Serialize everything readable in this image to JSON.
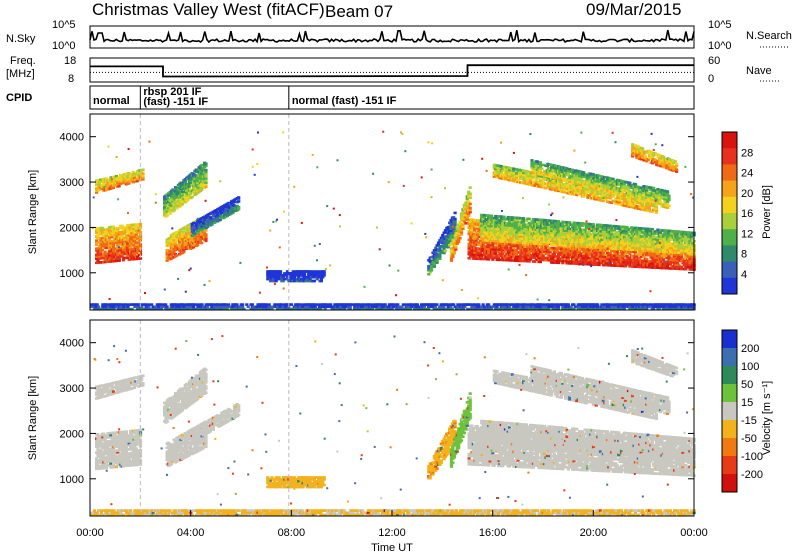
{
  "header": {
    "station": "Christmas Valley West (fitACF)",
    "beam": "Beam 07",
    "date": "09/Mar/2015"
  },
  "colors": {
    "power": [
      "#1f35d6",
      "#3a5fb8",
      "#2e8a6a",
      "#4fb04a",
      "#a9cf3a",
      "#f2d21e",
      "#f5a41a",
      "#f06a14",
      "#e8311c",
      "#d9140f"
    ],
    "velocity": [
      "#1a2fd0",
      "#3c6fb0",
      "#2f8a5a",
      "#6dc23b",
      "#c8c8c0",
      "#f2b21e",
      "#f07a10",
      "#e83a14",
      "#d0100c"
    ]
  },
  "top_panels": {
    "nsky": {
      "label": "N.Sky",
      "tick_top": "10^5",
      "tick_bottom": "10^0",
      "right_top": "10^5",
      "right_bottom": "10^0",
      "right_label": "N.Search"
    },
    "freq": {
      "label_line1": "Freq.",
      "label_line2": "[MHz]",
      "tick_top": "18",
      "tick_bottom": "8",
      "right_top": "60",
      "right_bottom": "0",
      "right_label": "Nave"
    },
    "cpid": {
      "label": "CPID",
      "segments": [
        {
          "text": "normal",
          "start_h": 0.0,
          "end_h": 2.0
        },
        {
          "text_line1": "rbsp 201 IF",
          "text_line2": "(fast) -151 IF",
          "start_h": 2.0,
          "end_h": 7.9
        },
        {
          "text": "normal (fast) -151 IF",
          "start_h": 7.9,
          "end_h": 24.0
        }
      ]
    }
  },
  "chart_data": [
    {
      "type": "heatmap",
      "name": "power",
      "ylabel": "Slant Range [km]",
      "xlabel": "",
      "xlim": [
        0,
        24
      ],
      "ylim": [
        180,
        4500
      ],
      "yticks": [
        1000,
        2000,
        3000,
        4000
      ],
      "colorbar": {
        "label": "Power [dB]",
        "ticks": [
          4,
          8,
          12,
          16,
          20,
          24,
          28
        ],
        "range": [
          0,
          30
        ]
      },
      "bands": [
        {
          "t0": 0.2,
          "t1": 2.0,
          "r_low0": 1200,
          "r_high0": 2000,
          "r_low1": 1300,
          "r_high1": 2100,
          "level": 26
        },
        {
          "t0": 0.2,
          "t1": 2.1,
          "r_low0": 2750,
          "r_high0": 3050,
          "r_low1": 3050,
          "r_high1": 3300,
          "level": 22
        },
        {
          "t0": 3.0,
          "t1": 4.6,
          "r_low0": 1250,
          "r_high0": 1800,
          "r_low1": 1700,
          "r_high1": 2300,
          "level": 24
        },
        {
          "t0": 2.9,
          "t1": 4.6,
          "r_low0": 2200,
          "r_high0": 2700,
          "r_low1": 2900,
          "r_high1": 3500,
          "level": 16
        },
        {
          "t0": 4.0,
          "t1": 5.9,
          "r_low0": 1800,
          "r_high0": 2100,
          "r_low1": 2400,
          "r_high1": 2700,
          "level": 8
        },
        {
          "t0": 7.0,
          "t1": 9.3,
          "r_low0": 800,
          "r_high0": 1050,
          "r_low1": 800,
          "r_high1": 1050,
          "level": 4
        },
        {
          "t0": 13.4,
          "t1": 14.5,
          "r_low0": 950,
          "r_high0": 1300,
          "r_low1": 1800,
          "r_high1": 2400,
          "level": 10
        },
        {
          "t0": 14.3,
          "t1": 15.1,
          "r_low0": 1250,
          "r_high0": 1650,
          "r_low1": 2400,
          "r_high1": 3000,
          "level": 22
        },
        {
          "t0": 15.0,
          "t1": 24.0,
          "r_low0": 1300,
          "r_high0": 2200,
          "r_low1": 1050,
          "r_high1": 1600,
          "level": 27
        },
        {
          "t0": 15.5,
          "t1": 24.0,
          "r_low0": 1700,
          "r_high0": 2300,
          "r_low1": 1400,
          "r_high1": 1900,
          "level": 18
        },
        {
          "t0": 16.0,
          "t1": 22.5,
          "r_low0": 3100,
          "r_high0": 3400,
          "r_low1": 2300,
          "r_high1": 2700,
          "level": 20
        },
        {
          "t0": 17.5,
          "t1": 23.0,
          "r_low0": 3200,
          "r_high0": 3500,
          "r_low1": 2400,
          "r_high1": 2800,
          "level": 17
        },
        {
          "t0": 21.5,
          "t1": 23.3,
          "r_low0": 3550,
          "r_high0": 3850,
          "r_low1": 3200,
          "r_high1": 3450,
          "level": 23
        },
        {
          "t0": 0.0,
          "t1": 24.0,
          "r_low0": 180,
          "r_high0": 330,
          "r_low1": 180,
          "r_high1": 330,
          "level": 6
        }
      ]
    },
    {
      "type": "heatmap",
      "name": "velocity",
      "ylabel": "Slant Range [km]",
      "xlabel": "Time UT",
      "xlim": [
        0,
        24
      ],
      "ylim": [
        180,
        4500
      ],
      "yticks": [
        1000,
        2000,
        3000,
        4000
      ],
      "xticks": [
        "00:00",
        "04:00",
        "08:00",
        "12:00",
        "16:00",
        "20:00",
        "00:00"
      ],
      "colorbar": {
        "label": "Velocity [m s⁻¹]",
        "ticks": [
          200,
          100,
          50,
          15,
          -15,
          -50,
          -100,
          -200
        ]
      },
      "bands": [
        {
          "t0": 0.2,
          "t1": 2.0,
          "r_low0": 1200,
          "r_high0": 2000,
          "r_low1": 1300,
          "r_high1": 2100,
          "level": 0
        },
        {
          "t0": 0.2,
          "t1": 2.1,
          "r_low0": 2750,
          "r_high0": 3050,
          "r_low1": 3050,
          "r_high1": 3300,
          "level": 0
        },
        {
          "t0": 3.0,
          "t1": 4.6,
          "r_low0": 1250,
          "r_high0": 1800,
          "r_low1": 1700,
          "r_high1": 2300,
          "level": 0
        },
        {
          "t0": 2.9,
          "t1": 4.6,
          "r_low0": 2200,
          "r_high0": 2700,
          "r_low1": 2900,
          "r_high1": 3500,
          "level": 0
        },
        {
          "t0": 4.0,
          "t1": 5.9,
          "r_low0": 1800,
          "r_high0": 2100,
          "r_low1": 2400,
          "r_high1": 2700,
          "level": 0
        },
        {
          "t0": 7.0,
          "t1": 9.3,
          "r_low0": 800,
          "r_high0": 1050,
          "r_low1": 800,
          "r_high1": 1050,
          "level": -30
        },
        {
          "t0": 13.4,
          "t1": 14.5,
          "r_low0": 950,
          "r_high0": 1300,
          "r_low1": 1800,
          "r_high1": 2400,
          "level": -40
        },
        {
          "t0": 14.3,
          "t1": 15.1,
          "r_low0": 1250,
          "r_high0": 1650,
          "r_low1": 2400,
          "r_high1": 3000,
          "level": 35
        },
        {
          "t0": 15.0,
          "t1": 24.0,
          "r_low0": 1300,
          "r_high0": 2200,
          "r_low1": 1050,
          "r_high1": 1600,
          "level": 0
        },
        {
          "t0": 15.5,
          "t1": 24.0,
          "r_low0": 1700,
          "r_high0": 2300,
          "r_low1": 1400,
          "r_high1": 1900,
          "level": 0
        },
        {
          "t0": 16.0,
          "t1": 22.5,
          "r_low0": 3100,
          "r_high0": 3400,
          "r_low1": 2300,
          "r_high1": 2700,
          "level": 0
        },
        {
          "t0": 17.5,
          "t1": 23.0,
          "r_low0": 3200,
          "r_high0": 3500,
          "r_low1": 2400,
          "r_high1": 2800,
          "level": 0
        },
        {
          "t0": 21.5,
          "t1": 23.3,
          "r_low0": 3550,
          "r_high0": 3850,
          "r_low1": 3200,
          "r_high1": 3450,
          "level": 0
        },
        {
          "t0": 0.0,
          "t1": 24.0,
          "r_low0": 180,
          "r_high0": 330,
          "r_low1": 180,
          "r_high1": 330,
          "level": -20
        }
      ]
    }
  ],
  "freq_series": {
    "solid": [
      [
        0.0,
        14.5
      ],
      [
        2.9,
        14.5
      ],
      [
        2.9,
        10.3
      ],
      [
        15.0,
        10.5
      ],
      [
        15.0,
        15.0
      ],
      [
        24.0,
        15.0
      ]
    ],
    "dotted_level": 12.0
  }
}
